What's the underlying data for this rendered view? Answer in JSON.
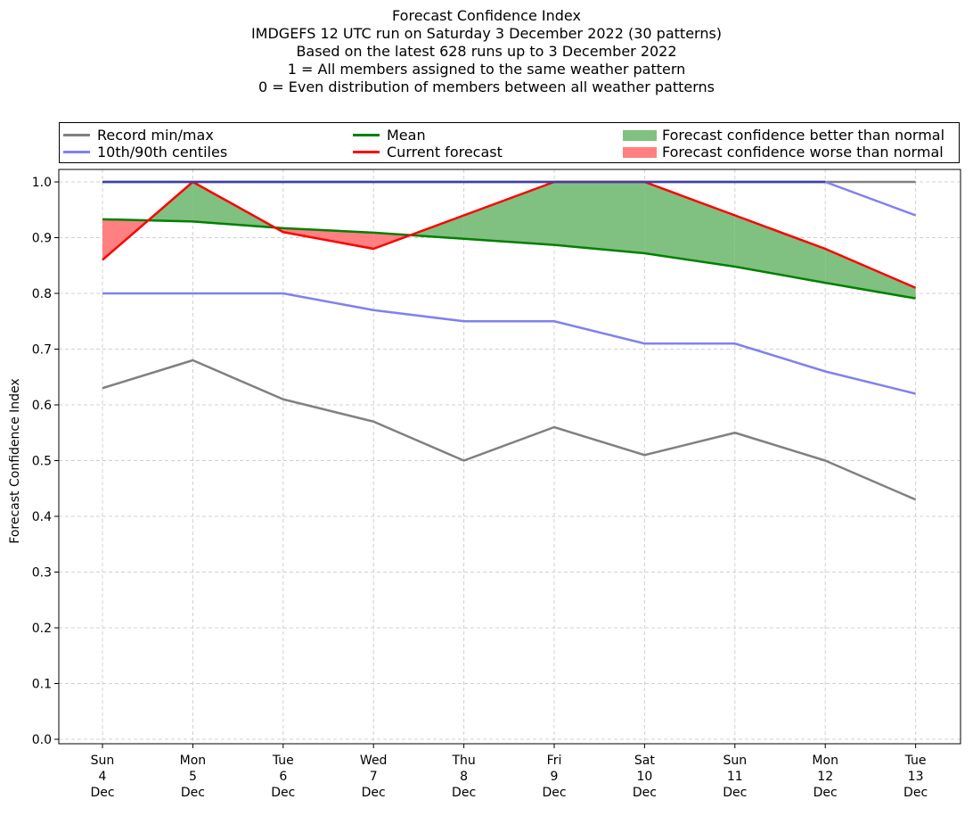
{
  "title_lines": [
    "Forecast Confidence Index",
    "IMDGEFS 12 UTC run on Saturday 3 December 2022 (30 patterns)",
    "Based on the latest 628 runs up to 3 December 2022",
    "1 = All members assigned to the same weather pattern",
    "0 = Even distribution of members between all weather patterns"
  ],
  "legend": {
    "record": "Record min/max",
    "centiles": "10th/90th centiles",
    "mean": "Mean",
    "current": "Current forecast",
    "better": "Forecast confidence better than normal",
    "worse": "Forecast confidence worse than normal"
  },
  "colors": {
    "record": "#808080",
    "centiles": "#8080f0",
    "mean": "#008000",
    "current": "#ff0000",
    "better": "#80c080",
    "worse": "#ff8080"
  },
  "chart_data": {
    "type": "line",
    "ylabel": "Forecast Confidence Index",
    "ylim": [
      0,
      1
    ],
    "yticks": [
      "0.0",
      "0.1",
      "0.2",
      "0.3",
      "0.4",
      "0.5",
      "0.6",
      "0.7",
      "0.8",
      "0.9",
      "1.0"
    ],
    "grid": true,
    "legend_position": "top",
    "categories": [
      [
        "Sun",
        "4",
        "Dec"
      ],
      [
        "Mon",
        "5",
        "Dec"
      ],
      [
        "Tue",
        "6",
        "Dec"
      ],
      [
        "Wed",
        "7",
        "Dec"
      ],
      [
        "Thu",
        "8",
        "Dec"
      ],
      [
        "Fri",
        "9",
        "Dec"
      ],
      [
        "Sat",
        "10",
        "Dec"
      ],
      [
        "Sun",
        "11",
        "Dec"
      ],
      [
        "Mon",
        "12",
        "Dec"
      ],
      [
        "Tue",
        "13",
        "Dec"
      ]
    ],
    "series": [
      {
        "name": "Record max",
        "values": [
          1.0,
          1.0,
          1.0,
          1.0,
          1.0,
          1.0,
          1.0,
          1.0,
          1.0,
          1.0
        ]
      },
      {
        "name": "Record min",
        "values": [
          0.63,
          0.68,
          0.61,
          0.57,
          0.5,
          0.56,
          0.51,
          0.55,
          0.5,
          0.43
        ]
      },
      {
        "name": "90th centile",
        "values": [
          1.0,
          1.0,
          1.0,
          1.0,
          1.0,
          1.0,
          1.0,
          1.0,
          1.0,
          0.94
        ]
      },
      {
        "name": "10th centile",
        "values": [
          0.8,
          0.8,
          0.8,
          0.77,
          0.75,
          0.75,
          0.71,
          0.71,
          0.66,
          0.62
        ]
      },
      {
        "name": "Mean",
        "values": [
          0.933,
          0.929,
          0.917,
          0.909,
          0.898,
          0.887,
          0.872,
          0.848,
          0.819,
          0.791
        ]
      },
      {
        "name": "Current forecast",
        "values": [
          0.86,
          1.0,
          0.91,
          0.88,
          0.94,
          1.0,
          1.0,
          0.94,
          0.88,
          0.81
        ]
      }
    ]
  }
}
